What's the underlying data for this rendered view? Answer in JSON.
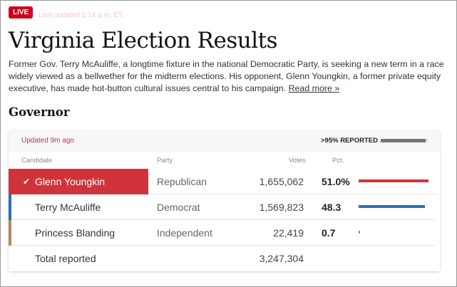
{
  "live_label": "LIVE",
  "last_updated": "Last updated 1:14 a.m. ET.",
  "title": "Virginia Election Results",
  "description": "Former Gov. Terry McAuliffe, a longtime fixture in the national Democratic Party, is seeking a new term in a race widely viewed as a bellwether for the midterm elections. His opponent, Glenn Youngkin, a former private equity executive, has made hot-button cultural issues central to his campaign.",
  "read_more": "Read more »",
  "section": "Governor",
  "card": {
    "updated": "Updated 9m ago",
    "reported": ">95% REPORTED",
    "reported_fraction": 0.95,
    "headers": {
      "candidate": "Candidate",
      "party": "Party",
      "votes": "Votes",
      "pct": "Pct."
    },
    "rows": [
      {
        "name": "Glenn Youngkin",
        "party": "Republican",
        "votes": "1,655,062",
        "pct": "51.0%",
        "pct_value": 51.0,
        "color": "#d0343a",
        "winner": true,
        "check": "✔"
      },
      {
        "name": "Terry McAuliffe",
        "party": "Democrat",
        "votes": "1,569,823",
        "pct": "48.3",
        "pct_value": 48.3,
        "color": "#2a6ebb",
        "winner": false
      },
      {
        "name": "Princess Blanding",
        "party": "Independent",
        "votes": "22,419",
        "pct": "0.7",
        "pct_value": 0.7,
        "color": "#b08a5a",
        "winner": false
      }
    ],
    "total_label": "Total reported",
    "total_votes": "3,247,304"
  }
}
